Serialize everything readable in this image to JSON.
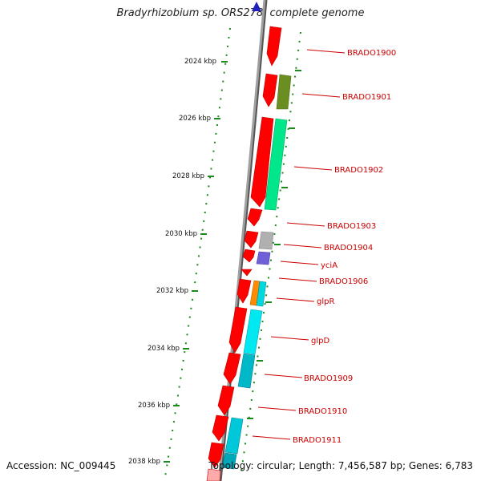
{
  "title": "Bradyrhizobium sp. ORS278, complete genome",
  "footer": {
    "accession": "Accession: NC_009445",
    "stats": "Topology: circular; Length: 7,456,587 bp; Genes: 6,783"
  },
  "ruler_ticks": [
    "2024 kbp",
    "2026 kbp",
    "2028 kbp",
    "2030 kbp",
    "2032 kbp",
    "2034 kbp",
    "2036 kbp",
    "2038 kbp"
  ],
  "gene_labels": [
    "BRADO1900",
    "BRADO1901",
    "BRADO1902",
    "BRADO1903",
    "BRADO1904",
    "yciA",
    "BRADO1906",
    "glpR",
    "glpD",
    "BRADO1909",
    "BRADO1910",
    "BRADO1911"
  ],
  "colors": {
    "cds": "#ff0000",
    "label_text": "#cc0000",
    "backbone": "#808080",
    "dotted_rings": "#1a8a1a",
    "olive": "#6b8e23",
    "spring_green": "#00e68a",
    "gray": "#b0b0b0",
    "slate_blue": "#7060d8",
    "orange": "#ff8c00",
    "cyan": "#00e0e0",
    "dark_cyan": "#00b8c8",
    "navy_marker": "#2020c0"
  }
}
